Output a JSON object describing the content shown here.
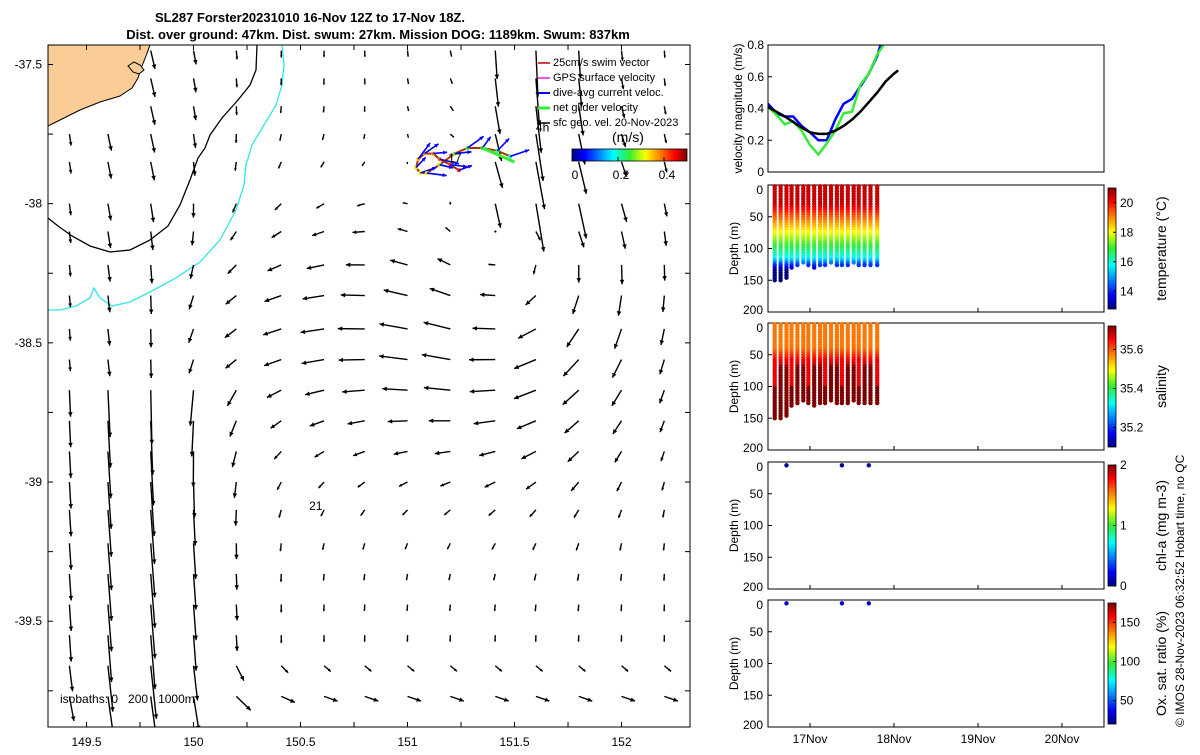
{
  "header": {
    "title_line1": "SL287 Forster20231010 16-Nov 12Z to 17-Nov 18Z.",
    "title_line2": "Dist. over ground: 47km. Dist. swum: 27km. Mission DOG: 1189km. Swum: 837km"
  },
  "credit": "© IMOS 28-Nov-2023 06:32:52 Hobart time, no QC",
  "colors": {
    "land": "#fbcd96",
    "coast": "#000000",
    "isobath_200": "#000000",
    "isobath_1000": "#33e6e6",
    "dive_avg": "#0000ff",
    "net_glider": "#33ee33",
    "gps_surface": "#e020e0",
    "swim_vector": "#cc0000",
    "sfc_geo": "#000000",
    "track": "#b03000"
  },
  "legend": {
    "items": [
      {
        "label": "25cm/s swim vector",
        "color": "#cc0000"
      },
      {
        "label": "GPS surface velocity",
        "color": "#e020e0"
      },
      {
        "label": "dive-avg current veloc.",
        "color": "#0000ff"
      },
      {
        "label": "net glider velocity",
        "color": "#33ee33"
      },
      {
        "label": "sfc geo. vel. 20-Nov-2023",
        "color": "#000000"
      }
    ]
  },
  "chart_data": [
    {
      "type": "map",
      "name": "glider-track-map",
      "xlim": [
        149.32,
        152.32
      ],
      "ylim": [
        -39.88,
        -37.43
      ],
      "xticks": [
        149.5,
        149.75,
        150,
        150.25,
        150.5,
        150.75,
        151,
        151.25,
        151.5,
        151.75,
        152
      ],
      "xticklabels": [
        "149.5",
        "",
        "150",
        "",
        "150.5",
        "",
        "151",
        "",
        "151.5",
        "",
        "152"
      ],
      "yticks": [
        -37.5,
        -37.75,
        -38,
        -38.25,
        -38.5,
        -38.75,
        -39,
        -39.25,
        -39.5,
        -39.75
      ],
      "yticklabels": [
        "-37.5",
        "",
        "-38",
        "",
        "-38.5",
        "",
        "-39",
        "",
        "-39.5",
        ""
      ],
      "speed_colorbar": {
        "label": "(m/s)",
        "ticks": [
          0,
          0.2,
          0.4
        ],
        "tick_labels": [
          "0",
          "0.2",
          "0.4"
        ],
        "range": [
          0,
          0.5
        ]
      },
      "annotations": [
        {
          "text": "4h",
          "x": 151.6,
          "y": -37.74
        },
        {
          "text": "17",
          "x": 151.19,
          "y": -37.85
        },
        {
          "text": "21",
          "x": 150.54,
          "y": -39.1
        }
      ],
      "isobaths_label": {
        "text": "isobaths: 0   200   1000m",
        "x": 149.37,
        "y": -39.76
      },
      "current_vectors": {
        "lon": [
          149.42,
          149.6,
          149.8,
          150.0,
          150.2,
          150.41,
          150.61,
          150.8,
          151.0,
          151.2,
          151.41,
          151.6,
          151.8,
          152.0,
          152.2
        ],
        "lat": [
          -37.45,
          -37.55,
          -37.65,
          -37.75,
          -37.85,
          -38.0,
          -38.1,
          -38.22,
          -38.33,
          -38.45,
          -38.56,
          -38.67,
          -38.78,
          -38.89,
          -39.0,
          -39.1,
          -39.22,
          -39.33,
          -39.44,
          -39.55,
          -39.66,
          -39.77,
          -39.87
        ],
        "u": [
          [
            0,
            0.0,
            0.13,
            0.09,
            0.0,
            0.0,
            0.06,
            0.0,
            0.0,
            0.12,
            0.19,
            0.29,
            0.1,
            0.09,
            0.1
          ],
          [
            0,
            0,
            0,
            0.02,
            0.0,
            0.03,
            0.04,
            0.04,
            0.06,
            0.06,
            0.04,
            0.23,
            0.1,
            0.07,
            0.1
          ],
          [
            0,
            0,
            0,
            0.02,
            0.05,
            0.06,
            0.07,
            0.07,
            0.08,
            0.08,
            0.04,
            0.23,
            0.1,
            0.07,
            0.1
          ],
          [
            0,
            0,
            0,
            0.02,
            0.05,
            0.06,
            0.07,
            0.07,
            0.08,
            0.08,
            0.04,
            0.23,
            0.1,
            0.07,
            0.1
          ],
          [
            0,
            0,
            0,
            0.02,
            0.05,
            0.06,
            0.07,
            0.07,
            0.08,
            0.08,
            0.04,
            0.23,
            0.1,
            0.07,
            0.1
          ],
          [
            0,
            0,
            0,
            0,
            0,
            0.04,
            0,
            0,
            0,
            0,
            0,
            0,
            0,
            0,
            0
          ],
          [
            -0.05,
            -0.06,
            -0.03,
            -0.03,
            -0.06,
            -0.07,
            -0.05,
            -0.06,
            -0.03,
            0,
            0.06,
            0.0,
            0.0,
            0.0,
            0.0
          ],
          [
            0,
            -0.04,
            -0.02,
            0.0,
            -0.02,
            -0.04,
            -0.06,
            -0.06,
            -0.06,
            -0.02,
            0.03,
            0.02,
            0.0,
            0.0,
            0.0
          ],
          [
            0,
            -0.03,
            -0.02,
            0.0,
            -0.02,
            -0.04,
            -0.06,
            -0.06,
            -0.06,
            -0.02,
            0.03,
            0.02,
            0.0,
            0.0,
            0.0
          ],
          [
            -0.02,
            0.03,
            0.05,
            0.06,
            0.06,
            0.04,
            -0.06,
            -0.08,
            -0.08,
            -0.07,
            0.03,
            0.04,
            0.0,
            0.0,
            0.0
          ],
          [
            0.0,
            0.0,
            0.0,
            0.0,
            0.0,
            0.0,
            0.0,
            0.0,
            0.0,
            0.0,
            0.0,
            0.0,
            0.0,
            0.0,
            0.0
          ],
          [
            0.0,
            0.0,
            0.0,
            0.0,
            0.0,
            0.0,
            0.0,
            0.0,
            0.0,
            0.0,
            0.0,
            0.0,
            0.0,
            0.0,
            0.0
          ],
          [
            0.0,
            0.0,
            0.0,
            0.0,
            0.0,
            0.0,
            0.0,
            0.0,
            0.0,
            0.0,
            0.0,
            0.0,
            0.0,
            0.0,
            0.0
          ],
          [
            0.0,
            0.0,
            0.0,
            0.0,
            0.0,
            0.0,
            0.0,
            0.0,
            0.0,
            0.0,
            0.0,
            0.0,
            0.0,
            0.0,
            0.0
          ],
          [
            0.0,
            0.0,
            0.0,
            0.0,
            0.0,
            0.0,
            0.0,
            0.0,
            0.0,
            0.0,
            0.0,
            0.0,
            0.0,
            0.0,
            0.0
          ],
          [
            0.0,
            0.0,
            0.0,
            0.0,
            0.0,
            0.0,
            0.0,
            0.0,
            0.0,
            0.0,
            0.0,
            0.0,
            0.0,
            0.0,
            0.0
          ],
          [
            0.0,
            0.0,
            0.0,
            0.0,
            0.0,
            0.0,
            0.0,
            0.0,
            0.0,
            0.0,
            0.0,
            0.0,
            0.0,
            0.0,
            0.0
          ],
          [
            0.0,
            0.0,
            0.0,
            0.0,
            0.0,
            0.0,
            0.0,
            0.0,
            0.0,
            0.0,
            0.0,
            0.0,
            0.0,
            0.0,
            0.0
          ],
          [
            0.0,
            0.0,
            0.0,
            0.0,
            0.0,
            0.0,
            0.0,
            0.0,
            0.0,
            0.0,
            0.0,
            0.0,
            0.0,
            0.0,
            0.0
          ],
          [
            0.0,
            0.0,
            0.0,
            0.0,
            0.0,
            0.0,
            0.0,
            0.0,
            0.0,
            0.0,
            0.0,
            0.0,
            0.0,
            0.0,
            0.0
          ],
          [
            0.0,
            0.0,
            0.0,
            0.0,
            0.0,
            0.0,
            0.0,
            0.0,
            0.0,
            0.0,
            0.0,
            0.0,
            0.0,
            0.0,
            0.0
          ],
          [
            0.0,
            0.0,
            0.0,
            0.0,
            0.0,
            0.0,
            0.0,
            0.0,
            0.0,
            0.0,
            0.0,
            0.0,
            0.0,
            0.0,
            0.0
          ],
          [
            0.0,
            0.0,
            0.0,
            0.0,
            0.0,
            0.0,
            0.0,
            0.0,
            0.0,
            0.0,
            0.0,
            0.0,
            0.0,
            0.0,
            0.0
          ]
        ],
        "note": "u/v in m/s, eastward/northward"
      },
      "glider_track_lonlat": [
        [
          151.24,
          -37.88
        ],
        [
          151.2,
          -37.86
        ],
        [
          151.15,
          -37.84
        ],
        [
          151.12,
          -37.82
        ],
        [
          151.08,
          -37.82
        ],
        [
          151.05,
          -37.84
        ],
        [
          151.04,
          -37.87
        ],
        [
          151.06,
          -37.89
        ],
        [
          151.09,
          -37.89
        ],
        [
          151.15,
          -37.86
        ],
        [
          151.22,
          -37.82
        ],
        [
          151.28,
          -37.8
        ],
        [
          151.35,
          -37.8
        ],
        [
          151.42,
          -37.81
        ],
        [
          151.48,
          -37.83
        ]
      ]
    },
    {
      "type": "line",
      "name": "velocity-magnitude",
      "ylabel": "velocity magnitude (m/s)",
      "xlim": [
        16.5,
        20.5
      ],
      "ylim": [
        0,
        0.8
      ],
      "yticks": [
        0,
        0.2,
        0.4,
        0.6,
        0.8
      ],
      "yticklabels": [
        "0",
        "0.2",
        "0.4",
        "0.6",
        "0.8"
      ],
      "series": [
        {
          "name": "dive-avg current veloc.",
          "color": "#0000ff",
          "x": [
            16.5,
            16.6,
            16.7,
            16.8,
            16.9,
            17.0,
            17.1,
            17.2,
            17.3,
            17.4,
            17.5,
            17.6,
            17.7,
            17.8,
            17.85
          ],
          "y": [
            0.43,
            0.37,
            0.35,
            0.35,
            0.29,
            0.25,
            0.2,
            0.2,
            0.33,
            0.43,
            0.46,
            0.54,
            0.62,
            0.73,
            0.82
          ]
        },
        {
          "name": "net glider velocity",
          "color": "#33ee33",
          "x": [
            16.5,
            16.6,
            16.7,
            16.8,
            16.9,
            17.0,
            17.1,
            17.2,
            17.3,
            17.4,
            17.5,
            17.6,
            17.7,
            17.8,
            17.9
          ],
          "y": [
            0.41,
            0.36,
            0.3,
            0.32,
            0.26,
            0.17,
            0.11,
            0.18,
            0.26,
            0.37,
            0.38,
            0.55,
            0.62,
            0.74,
            0.82
          ]
        },
        {
          "name": "sfc geo. vel. 20-Nov-2023",
          "color": "#000000",
          "x": [
            16.5,
            16.7,
            16.9,
            17.0,
            17.1,
            17.2,
            17.3,
            17.4,
            17.5,
            17.6,
            17.7,
            17.8,
            17.9,
            18.0,
            18.05
          ],
          "y": [
            0.41,
            0.35,
            0.28,
            0.25,
            0.24,
            0.24,
            0.26,
            0.29,
            0.33,
            0.38,
            0.44,
            0.5,
            0.57,
            0.62,
            0.64
          ]
        }
      ]
    },
    {
      "type": "scatter",
      "name": "temperature-section",
      "ylabel": "Depth (m)",
      "cblabel": "temperature (°C)",
      "ylim": [
        0,
        200
      ],
      "yticks": [
        0,
        50,
        100,
        150,
        200
      ],
      "yticklabels": [
        "0",
        "50",
        "100",
        "150",
        "200"
      ],
      "clim": [
        12.8,
        21
      ],
      "cticks": [
        14,
        16,
        18,
        20
      ],
      "cticklabels": [
        "14",
        "16",
        "18",
        "20"
      ],
      "profiles_days": [
        16.58,
        16.65,
        16.72,
        16.78,
        16.85,
        16.92,
        16.98,
        17.05,
        17.12,
        17.18,
        17.25,
        17.32,
        17.38,
        17.45,
        17.52,
        17.58,
        17.65,
        17.72,
        17.8
      ],
      "max_depths": [
        150,
        152,
        148,
        130,
        128,
        125,
        128,
        130,
        126,
        128,
        125,
        129,
        126,
        128,
        125,
        128,
        127,
        126,
        128
      ]
    },
    {
      "type": "scatter",
      "name": "salinity-section",
      "ylabel": "Depth (m)",
      "cblabel": "salinity",
      "ylim": [
        0,
        200
      ],
      "yticks": [
        0,
        50,
        100,
        150,
        200
      ],
      "yticklabels": [
        "0",
        "50",
        "100",
        "150",
        "200"
      ],
      "clim": [
        35.1,
        35.72
      ],
      "cticks": [
        35.2,
        35.4,
        35.6
      ],
      "cticklabels": [
        "35.2",
        "35.4",
        "35.6"
      ],
      "profiles_days": [
        16.58,
        16.65,
        16.72,
        16.78,
        16.85,
        16.92,
        16.98,
        17.05,
        17.12,
        17.18,
        17.25,
        17.32,
        17.38,
        17.45,
        17.52,
        17.58,
        17.65,
        17.72,
        17.8
      ],
      "max_depths": [
        150,
        152,
        148,
        130,
        128,
        125,
        128,
        130,
        126,
        128,
        125,
        129,
        126,
        128,
        125,
        128,
        127,
        126,
        128
      ]
    },
    {
      "type": "scatter",
      "name": "chla-section",
      "ylabel": "Depth (m)",
      "cblabel": "chl-a (mg m-3)",
      "ylim": [
        0,
        200
      ],
      "yticks": [
        0,
        50,
        100,
        150,
        200
      ],
      "yticklabels": [
        "0",
        "50",
        "100",
        "150",
        "200"
      ],
      "clim": [
        0,
        2
      ],
      "cticks": [
        0,
        1,
        2
      ],
      "cticklabels": [
        "0",
        "1",
        "2"
      ],
      "points": [
        {
          "day": 16.72,
          "depth": 2,
          "value": 0.05
        },
        {
          "day": 17.38,
          "depth": 2,
          "value": 0.05
        },
        {
          "day": 17.7,
          "depth": 2,
          "value": 0.05
        }
      ]
    },
    {
      "type": "scatter",
      "name": "oxygen-section",
      "ylabel": "Depth (m)",
      "cblabel": "Ox. sat. ratio (%)",
      "ylim": [
        0,
        200
      ],
      "yticks": [
        0,
        50,
        100,
        150,
        200
      ],
      "yticklabels": [
        "0",
        "50",
        "100",
        "150",
        "200"
      ],
      "xlim": [
        16.5,
        20.5
      ],
      "xticks": [
        17,
        18,
        19,
        20
      ],
      "xticklabels": [
        "17Nov",
        "18Nov",
        "19Nov",
        "20Nov"
      ],
      "clim": [
        20,
        175
      ],
      "cticks": [
        50,
        100,
        150
      ],
      "cticklabels": [
        "50",
        "100",
        "150"
      ],
      "points": [
        {
          "day": 16.72,
          "depth": 2,
          "value": 30
        },
        {
          "day": 17.38,
          "depth": 2,
          "value": 30
        },
        {
          "day": 17.7,
          "depth": 2,
          "value": 30
        }
      ]
    }
  ]
}
